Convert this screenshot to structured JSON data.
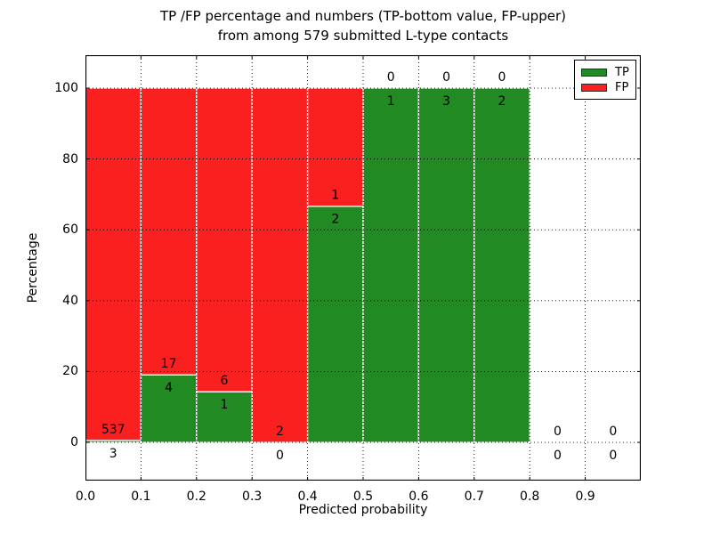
{
  "title": {
    "line1": "TP /FP percentage and numbers (TP-bottom value, FP-upper)",
    "line2": "from among 579 submitted L-type contacts"
  },
  "axes": {
    "xlabel": "Predicted probability",
    "ylabel": "Percentage",
    "x_tick_values": [
      0,
      0.1,
      0.2,
      0.3,
      0.4,
      0.5,
      0.6,
      0.7,
      0.8,
      0.9
    ],
    "x_tick_labels": [
      "0.0",
      "0.1",
      "0.2",
      "0.3",
      "0.4",
      "0.5",
      "0.6",
      "0.7",
      "0.8",
      "0.9"
    ],
    "y_tick_values": [
      0,
      20,
      40,
      60,
      80,
      100
    ],
    "y_tick_labels": [
      "0",
      "20",
      "40",
      "60",
      "80",
      "100"
    ]
  },
  "legend": [
    {
      "label": "TP",
      "color": "#228a22"
    },
    {
      "label": "FP",
      "color": "#fb2020"
    }
  ],
  "colors": {
    "tp": "#228a22",
    "fp": "#fb2020",
    "grid": "#000000",
    "frame": "#000000",
    "bar_edge": "#ffffff",
    "background": "#ffffff",
    "text": "#000000"
  },
  "chart_data": {
    "type": "bar",
    "stacked": true,
    "title": "TP /FP percentage and numbers (TP-bottom value, FP-upper) from among 579 submitted L-type contacts",
    "xlabel": "Predicted probability",
    "ylabel": "Percentage",
    "xlim": [
      0.0,
      1.0
    ],
    "ylim": [
      -10.8,
      109.3
    ],
    "grid": true,
    "legend_position": "upper right",
    "bin_width": 0.1,
    "categories": [
      "0.0-0.1",
      "0.1-0.2",
      "0.2-0.3",
      "0.3-0.4",
      "0.4-0.5",
      "0.5-0.6",
      "0.6-0.7",
      "0.7-0.8",
      "0.8-0.9",
      "0.9-1.0"
    ],
    "series": [
      {
        "name": "TP",
        "color": "#228a22",
        "counts": [
          3,
          4,
          1,
          0,
          2,
          1,
          3,
          2,
          0,
          0
        ],
        "percent": [
          0.56,
          19.05,
          14.29,
          0,
          66.67,
          100,
          100,
          100,
          0,
          0
        ]
      },
      {
        "name": "FP",
        "color": "#fb2020",
        "counts": [
          537,
          17,
          6,
          2,
          1,
          0,
          0,
          0,
          0,
          0
        ],
        "percent": [
          99.44,
          80.95,
          85.71,
          100,
          33.33,
          0,
          0,
          0,
          0,
          0
        ]
      }
    ]
  }
}
